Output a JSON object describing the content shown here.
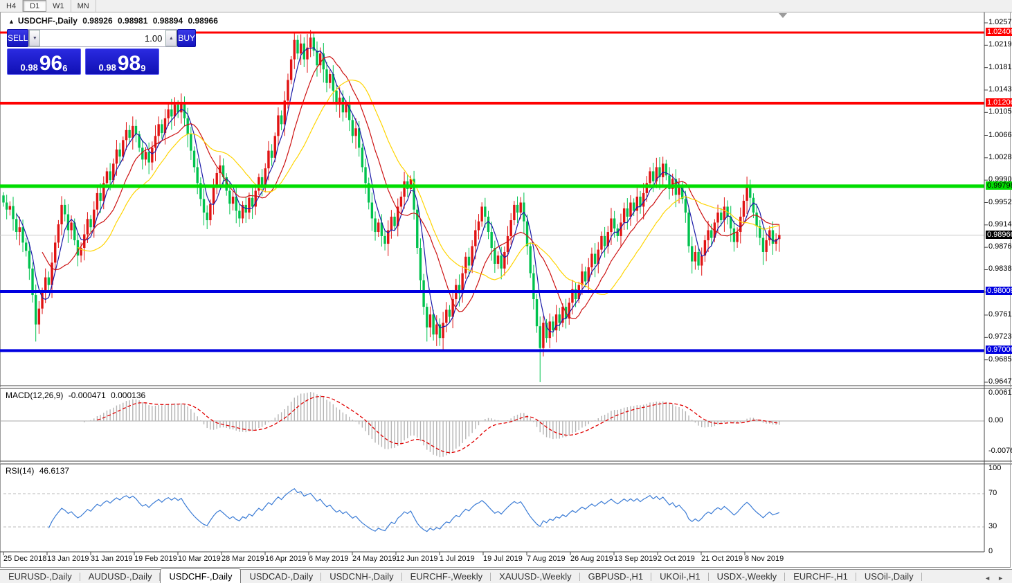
{
  "toolbar": {
    "timeframes": [
      {
        "label": "H4",
        "active": false
      },
      {
        "label": "D1",
        "active": true
      },
      {
        "label": "W1",
        "active": false
      },
      {
        "label": "MN",
        "active": false
      }
    ]
  },
  "chart": {
    "collapse_marker": "▲",
    "symbol_title": "USDCHF-,Daily",
    "ohlc": {
      "open": "0.98926",
      "high": "0.98981",
      "low": "0.98894",
      "close": "0.98966"
    }
  },
  "trade_panel": {
    "sell_label": "SELL",
    "buy_label": "BUY",
    "volume": "1.00",
    "spin_down": "▼",
    "spin_up": "▲",
    "sell_price": {
      "base": "0.98",
      "big": "96",
      "sup": "6"
    },
    "buy_price": {
      "base": "0.98",
      "big": "98",
      "sup": "9"
    }
  },
  "indicators": {
    "macd": {
      "label": "MACD(12,26,9)",
      "value_main": "-0.000471",
      "value_signal": "0.000136",
      "axis": [
        "0.00613",
        "0.00",
        "-0.0076123"
      ]
    },
    "rsi": {
      "label": "RSI(14)",
      "value": "46.6137",
      "axis": [
        "100",
        "70",
        "30",
        "0"
      ]
    }
  },
  "price_scale": {
    "ticks": [
      "1.02570",
      "1.02190",
      "1.01810",
      "1.01430",
      "1.01050",
      "1.00660",
      "1.00280",
      "0.99900",
      "0.99520",
      "0.99140",
      "0.98760",
      "0.98380",
      "0.98000",
      "0.97610",
      "0.97230",
      "0.96850",
      "0.96470"
    ],
    "badges": [
      {
        "value": "1.02406",
        "bg": "#ff0000",
        "fg": "#ffffff"
      },
      {
        "value": "1.01206",
        "bg": "#ff0000",
        "fg": "#ffffff"
      },
      {
        "value": "0.99798",
        "bg": "#00dd00",
        "fg": "#000000"
      },
      {
        "value": "0.98966",
        "bg": "#000000",
        "fg": "#ffffff"
      },
      {
        "value": "0.98009",
        "bg": "#0000e0",
        "fg": "#ffffff"
      },
      {
        "value": "0.97006",
        "bg": "#0000e0",
        "fg": "#ffffff"
      }
    ]
  },
  "tabs": {
    "items": [
      "EURUSD-,Daily",
      "AUDUSD-,Daily",
      "USDCHF-,Daily",
      "USDCAD-,Daily",
      "USDCNH-,Daily",
      "EURCHF-,Weekly",
      "XAUUSD-,Weekly",
      "GBPUSD-,H1",
      "UKOil-,H1",
      "USDX-,Weekly",
      "EURCHF-,H1",
      "USOil-,Daily"
    ],
    "active": "USDCHF-,Daily",
    "nav_left": "◄",
    "nav_right": "►"
  },
  "colors": {
    "bull": "#e01313",
    "bear": "#00c24e",
    "ma_fast": "#1a1aa8",
    "ma_mid": "#cc1111",
    "ma_slow": "#ffd400",
    "macd_hist": "#b4b4b4",
    "macd_signal": "#e00000",
    "rsi_line": "#3a7bd5",
    "current_line": "#c8c8c8",
    "panel_blue": "#1c1cc8"
  },
  "chart_data": {
    "type": "candlestick",
    "symbol": "USDCHF",
    "timeframe": "Daily",
    "title": "USDCHF-,Daily 0.98926 0.98981 0.98894 0.98966",
    "y_axis": {
      "min": 0.9647,
      "max": 1.0257
    },
    "x_axis": {
      "labels": [
        "25 Dec 2018",
        "13 Jan 2019",
        "31 Jan 2019",
        "19 Feb 2019",
        "10 Mar 2019",
        "28 Mar 2019",
        "16 Apr 2019",
        "6 May 2019",
        "24 May 2019",
        "12 Jun 2019",
        "1 Jul 2019",
        "19 Jul 2019",
        "7 Aug 2019",
        "26 Aug 2019",
        "13 Sep 2019",
        "2 Oct 2019",
        "21 Oct 2019",
        "8 Nov 2019"
      ]
    },
    "closes": [
      0.9952,
      0.994,
      0.9946,
      0.9924,
      0.9902,
      0.991,
      0.9884,
      0.987,
      0.984,
      0.9795,
      0.9745,
      0.9772,
      0.98,
      0.9825,
      0.9812,
      0.985,
      0.9884,
      0.9915,
      0.9948,
      0.9932,
      0.9905,
      0.9918,
      0.9888,
      0.9862,
      0.9875,
      0.9898,
      0.9924,
      0.991,
      0.994,
      0.9968,
      0.9955,
      0.9985,
      1.0005,
      0.999,
      1.0018,
      1.0042,
      1.003,
      1.0058,
      1.0075,
      1.0062,
      1.0082,
      1.0068,
      1.0045,
      1.0025,
      1.0038,
      1.002,
      1.0045,
      1.0065,
      1.0085,
      1.007,
      1.0095,
      1.011,
      1.0098,
      1.0118,
      1.0105,
      1.0122,
      1.0095,
      1.0068,
      1.004,
      1.0012,
      0.9985,
      0.9958,
      0.9935,
      0.9922,
      0.995,
      0.9978,
      1.0002,
      1.0015,
      0.9995,
      0.9972,
      0.995,
      0.9962,
      0.9938,
      0.9925,
      0.9948,
      0.9935,
      0.996,
      0.9945,
      0.9972,
      0.9995,
      0.998,
      1.001,
      1.004,
      1.0028,
      1.0065,
      1.01,
      1.0085,
      1.0125,
      1.016,
      1.0195,
      1.0228,
      1.0205,
      1.0222,
      1.0195,
      1.0215,
      1.0232,
      1.021,
      1.0185,
      1.0205,
      1.0178,
      1.0155,
      1.017,
      1.0142,
      1.0118,
      1.013,
      1.0105,
      1.0118,
      1.0092,
      1.0065,
      1.0078,
      1.0045,
      1.0012,
      0.9985,
      0.9952,
      0.9925,
      0.9902,
      0.9918,
      0.9895,
      0.9882,
      0.9905,
      0.9928,
      0.9912,
      0.9945,
      0.9962,
      0.9988,
      0.9975,
      0.9992,
      0.994,
      0.9875,
      0.982,
      0.9775,
      0.974,
      0.9762,
      0.9728,
      0.9745,
      0.9722,
      0.9748,
      0.977,
      0.9758,
      0.9788,
      0.9812,
      0.9798,
      0.9832,
      0.986,
      0.9845,
      0.9878,
      0.9905,
      0.992,
      0.9945,
      0.9928,
      0.9902,
      0.9875,
      0.9848,
      0.9862,
      0.984,
      0.9868,
      0.9895,
      0.9922,
      0.9948,
      0.9935,
      0.9952,
      0.992,
      0.9878,
      0.9832,
      0.9788,
      0.9742,
      0.9705,
      0.9748,
      0.9722,
      0.975,
      0.9735,
      0.9762,
      0.9748,
      0.9775,
      0.9755,
      0.9782,
      0.9805,
      0.9788,
      0.9812,
      0.9835,
      0.9818,
      0.9842,
      0.9865,
      0.9848,
      0.9872,
      0.9895,
      0.9878,
      0.9902,
      0.9925,
      0.9908,
      0.9895,
      0.9918,
      0.9942,
      0.9928,
      0.9952,
      0.9938,
      0.9962,
      0.9945,
      0.9968,
      0.9985,
      1.0005,
      0.9988,
      1.0012,
      0.9995,
      1.0018,
      0.9998,
      0.9975,
      0.9992,
      0.9965,
      0.9982,
      0.9958,
      0.9935,
      0.9878,
      0.9852,
      0.9868,
      0.9845,
      0.9862,
      0.9888,
      0.9905,
      0.9892,
      0.9918,
      0.9935,
      0.9922,
      0.9945,
      0.9928,
      0.9908,
      0.9885,
      0.9902,
      0.9928,
      0.9955,
      0.9978,
      0.996,
      0.9935,
      0.9912,
      0.9892,
      0.9868,
      0.9888,
      0.9905,
      0.9882,
      0.989,
      0.9897
    ],
    "spikes": [
      {
        "i": 10,
        "low": 0.9716
      },
      {
        "i": 55,
        "high": 1.0126
      },
      {
        "i": 90,
        "high": 1.024
      },
      {
        "i": 94,
        "high": 1.0238
      },
      {
        "i": 126,
        "high": 0.9998
      },
      {
        "i": 131,
        "low": 0.9716
      },
      {
        "i": 133,
        "low": 0.9719
      },
      {
        "i": 166,
        "low": 0.9647
      },
      {
        "i": 202,
        "high": 1.0028
      },
      {
        "i": 204,
        "high": 1.0022
      },
      {
        "i": 230,
        "high": 0.9984
      }
    ],
    "hlines": [
      {
        "price": 1.02406,
        "color": "#ff0000",
        "width": 3
      },
      {
        "price": 1.01206,
        "color": "#ff0000",
        "width": 4
      },
      {
        "price": 0.99798,
        "color": "#00dd00",
        "width": 5
      },
      {
        "price": 0.98009,
        "color": "#0000e0",
        "width": 4
      },
      {
        "price": 0.97006,
        "color": "#0000e0",
        "width": 4
      }
    ],
    "current_price": 0.98966,
    "moving_averages": [
      {
        "period": 5,
        "color": "#1a1aa8"
      },
      {
        "period": 13,
        "color": "#cc1111"
      },
      {
        "period": 24,
        "color": "#ffd400"
      }
    ],
    "macd": {
      "fast": 12,
      "slow": 26,
      "signal": 9,
      "range": [
        -0.0076123,
        0.00613
      ],
      "current": [
        -0.000471,
        0.000136
      ]
    },
    "rsi": {
      "period": 14,
      "range": [
        0,
        100
      ],
      "levels": [
        70,
        30
      ],
      "current": 46.6137
    }
  }
}
